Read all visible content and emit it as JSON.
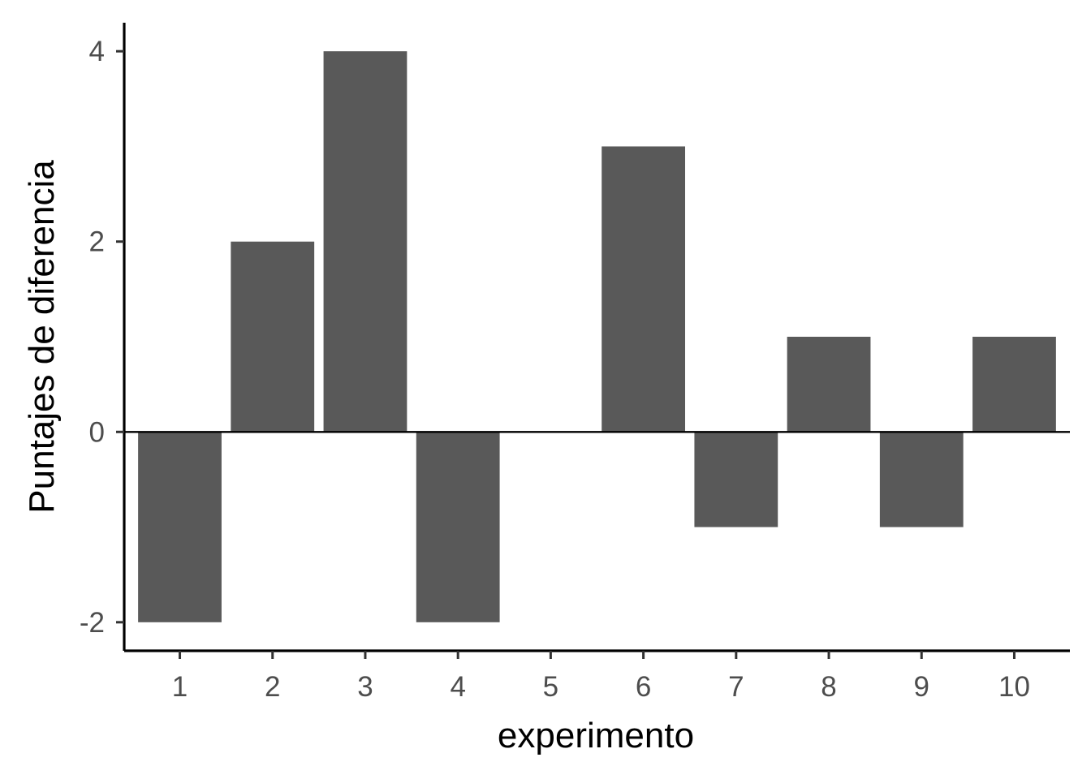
{
  "chart_data": {
    "type": "bar",
    "title": "",
    "xlabel": "experimento",
    "ylabel": "Puntajes de diferencia",
    "categories": [
      "1",
      "2",
      "3",
      "4",
      "5",
      "6",
      "7",
      "8",
      "9",
      "10"
    ],
    "values": [
      -2,
      2,
      4,
      -2,
      0,
      3,
      -1,
      1,
      -1,
      1
    ],
    "ylim": [
      -2.3,
      4.3
    ],
    "yticks": [
      -2,
      0,
      2,
      4
    ],
    "ytick_labels": [
      "-2",
      "0",
      "2",
      "4"
    ],
    "reference_line_y": 0,
    "grid": false,
    "bar_color": "#595959",
    "axis_color": "#000000",
    "tick_label_color": "#4d4d4d"
  }
}
